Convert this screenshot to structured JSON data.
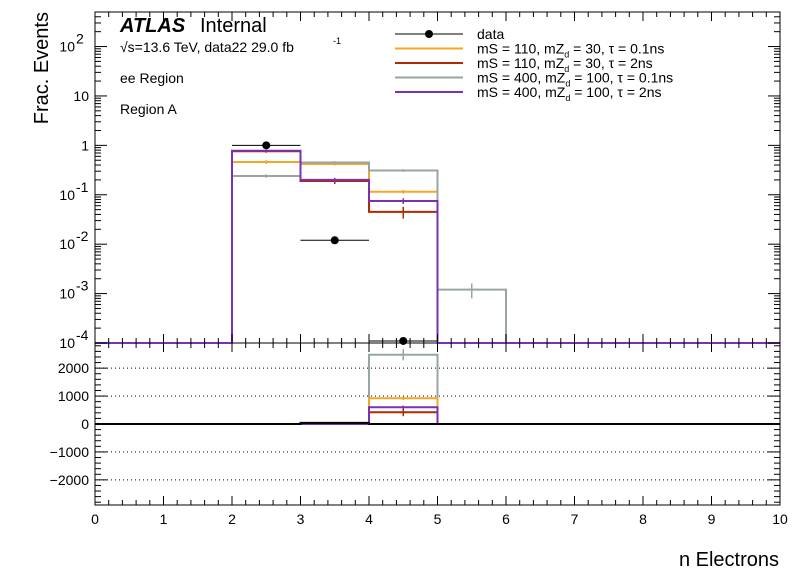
{
  "header": {
    "atlas": "ATLAS",
    "internal": "Internal",
    "energy": "√s=13.6 TeV, data22 29.0 fb",
    "energy_sup": "-1",
    "region1": "ee Region",
    "region2": "Region A"
  },
  "colors": {
    "data": "#000000",
    "mS110_tau01": "#f5a623",
    "mS110_tau2": "#b22a00",
    "mS400_tau01": "#98a5a5",
    "mS400_tau2": "#7a2fb5"
  },
  "chart_data": [
    {
      "type": "line",
      "panel": "top",
      "ylabel": "Frac. Events",
      "yscale": "log",
      "ylim": [
        0.0001,
        500
      ],
      "xlim": [
        0,
        10
      ],
      "yticks": [
        {
          "value": 0.0001,
          "base": "10",
          "exp": "-4"
        },
        {
          "value": 0.001,
          "base": "10",
          "exp": "-3"
        },
        {
          "value": 0.01,
          "base": "10",
          "exp": "-2"
        },
        {
          "value": 0.1,
          "base": "10",
          "exp": "-1"
        },
        {
          "value": 1,
          "base": "1",
          "exp": ""
        },
        {
          "value": 10,
          "base": "10",
          "exp": ""
        },
        {
          "value": 100,
          "base": "10",
          "exp": "2"
        }
      ],
      "bin_edges": [
        0,
        1,
        2,
        3,
        4,
        5,
        6,
        7,
        8,
        9,
        10
      ],
      "legend_position": "top-right",
      "legend": [
        {
          "text": "data",
          "key": "data",
          "color": "#000000",
          "style": "marker"
        },
        {
          "text": "mS = 110, mZ",
          "sub": "d",
          "rest": " = 30, τ = 0.1ns",
          "key": "mS110_tau01",
          "color": "#f5a623",
          "style": "line"
        },
        {
          "text": "mS = 110, mZ",
          "sub": "d",
          "rest": " = 30, τ = 2ns",
          "key": "mS110_tau2",
          "color": "#b22a00",
          "style": "line"
        },
        {
          "text": "mS = 400, mZ",
          "sub": "d",
          "rest": " = 100, τ = 0.1ns",
          "key": "mS400_tau01",
          "color": "#98a5a5",
          "style": "line"
        },
        {
          "text": "mS = 400, mZ",
          "sub": "d",
          "rest": " = 100, τ = 2ns",
          "key": "mS400_tau2",
          "color": "#7a2fb5",
          "style": "line"
        }
      ],
      "data_points": [
        {
          "x": 2.5,
          "y": 1.0
        },
        {
          "x": 3.5,
          "y": 0.012
        },
        {
          "x": 4.5,
          "y": 0.00011
        }
      ],
      "series": [
        {
          "key": "mS110_tau01",
          "values": [
            0,
            0,
            0.46,
            0.42,
            0.115,
            0,
            0,
            0,
            0,
            0
          ],
          "err": [
            0,
            0,
            0.04,
            0.03,
            0.01,
            0,
            0,
            0,
            0,
            0
          ]
        },
        {
          "key": "mS110_tau2",
          "values": [
            0,
            0,
            0.76,
            0.19,
            0.045,
            0,
            0,
            0,
            0,
            0
          ],
          "err": [
            0,
            0,
            0.05,
            0.025,
            0.012,
            0,
            0,
            0,
            0,
            0
          ]
        },
        {
          "key": "mS400_tau01",
          "values": [
            0,
            0,
            0.24,
            0.45,
            0.31,
            0.0012,
            0,
            0,
            0,
            0
          ],
          "err": [
            0,
            0,
            0.02,
            0.03,
            0.02,
            0.0004,
            0,
            0,
            0,
            0
          ]
        },
        {
          "key": "mS400_tau2",
          "values": [
            0,
            0,
            0.78,
            0.2,
            0.075,
            0,
            0,
            0,
            0,
            0
          ],
          "err": [
            0,
            0,
            0.04,
            0.02,
            0.01,
            0,
            0,
            0,
            0,
            0
          ]
        }
      ]
    },
    {
      "type": "line",
      "panel": "ratio",
      "xlabel": "n Electrons",
      "ylim": [
        -2900,
        2900
      ],
      "xlim": [
        0,
        10
      ],
      "xticks": [
        "0",
        "1",
        "2",
        "3",
        "4",
        "5",
        "6",
        "7",
        "8",
        "9",
        "10"
      ],
      "yticks": [
        {
          "value": 2000,
          "label": "2000"
        },
        {
          "value": 1000,
          "label": "1000"
        },
        {
          "value": 0,
          "label": "0"
        },
        {
          "value": -1000,
          "label": "−1000"
        },
        {
          "value": -2000,
          "label": "−2000"
        }
      ],
      "bin_edges": [
        0,
        1,
        2,
        3,
        4,
        5,
        6,
        7,
        8,
        9,
        10
      ],
      "grid": true,
      "series": [
        {
          "key": "mS400_tau01",
          "values": [
            0,
            0,
            0,
            0,
            2480,
            0,
            0,
            0,
            0,
            0
          ],
          "err": [
            0,
            0,
            0,
            0,
            200,
            0,
            0,
            0,
            0,
            0
          ]
        },
        {
          "key": "mS110_tau01",
          "values": [
            0,
            0,
            0,
            0,
            920,
            0,
            0,
            0,
            0,
            0
          ],
          "err": [
            0,
            0,
            0,
            0,
            60,
            0,
            0,
            0,
            0,
            0
          ]
        },
        {
          "key": "mS110_tau2",
          "values": [
            0,
            0,
            0,
            0,
            420,
            0,
            0,
            0,
            0,
            0
          ],
          "err": [
            0,
            0,
            0,
            0,
            140,
            0,
            0,
            0,
            0,
            0
          ]
        },
        {
          "key": "mS400_tau2",
          "values": [
            0,
            0,
            0,
            0,
            600,
            0,
            0,
            0,
            0,
            0
          ],
          "err": [
            0,
            0,
            0,
            0,
            60,
            0,
            0,
            0,
            0,
            0
          ]
        },
        {
          "key": "data",
          "values": [
            0,
            0,
            0,
            40,
            0,
            0,
            0,
            0,
            0,
            0
          ],
          "err": [
            0,
            0,
            0,
            0,
            0,
            0,
            0,
            0,
            0,
            0
          ]
        }
      ]
    }
  ]
}
